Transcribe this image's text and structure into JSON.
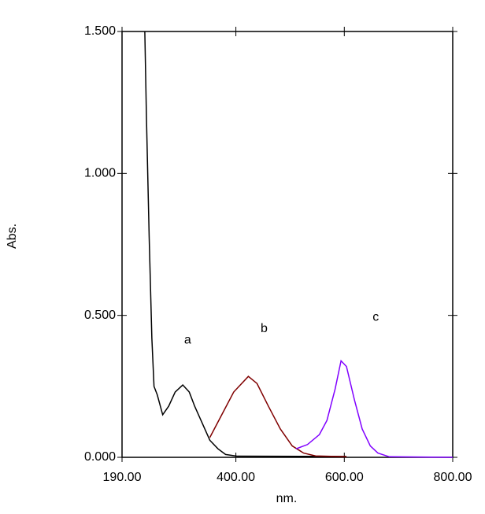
{
  "chart_data": {
    "type": "line",
    "x_label": "nm.",
    "y_label": "Abs.",
    "xlim": [
      190,
      800
    ],
    "ylim": [
      0,
      1.5
    ],
    "xticks": [
      {
        "value": 190,
        "label": "190.00"
      },
      {
        "value": 400,
        "label": "400.00"
      },
      {
        "value": 600,
        "label": "600.00"
      },
      {
        "value": 800,
        "label": "800.00"
      }
    ],
    "yticks": [
      {
        "value": 0,
        "label": "0.000"
      },
      {
        "value": 0.5,
        "label": "0.500"
      },
      {
        "value": 1,
        "label": "1.000"
      },
      {
        "value": 1.5,
        "label": "1.500"
      }
    ],
    "series": [
      {
        "color": "#000000",
        "x": [
          232,
          235,
          240,
          245,
          249,
          255,
          265,
          276,
          288,
          302,
          314,
          324,
          338,
          352,
          367,
          381,
          403,
          604
        ],
        "values": [
          1.5,
          1.2,
          0.78,
          0.42,
          0.25,
          0.22,
          0.15,
          0.18,
          0.23,
          0.255,
          0.23,
          0.18,
          0.12,
          0.06,
          0.03,
          0.01,
          0.004,
          0.003
        ]
      },
      {
        "color": "#800000",
        "x": [
          352,
          374,
          396,
          423,
          439,
          460,
          482,
          504,
          525,
          547,
          604
        ],
        "values": [
          0.07,
          0.15,
          0.23,
          0.285,
          0.26,
          0.18,
          0.1,
          0.04,
          0.015,
          0.005,
          0.002
        ]
      },
      {
        "color": "#8000ff",
        "x": [
          511,
          532,
          554,
          568,
          583,
          594,
          604,
          619,
          633,
          648,
          662,
          683,
          800
        ],
        "values": [
          0.03,
          0.045,
          0.08,
          0.13,
          0.24,
          0.34,
          0.32,
          0.2,
          0.1,
          0.04,
          0.015,
          0.002,
          0
        ]
      }
    ],
    "annotations": [
      {
        "text": "a",
        "x": 311,
        "y": 0.413
      },
      {
        "text": "b",
        "x": 452,
        "y": 0.452
      },
      {
        "text": "c",
        "x": 658,
        "y": 0.493
      }
    ]
  }
}
